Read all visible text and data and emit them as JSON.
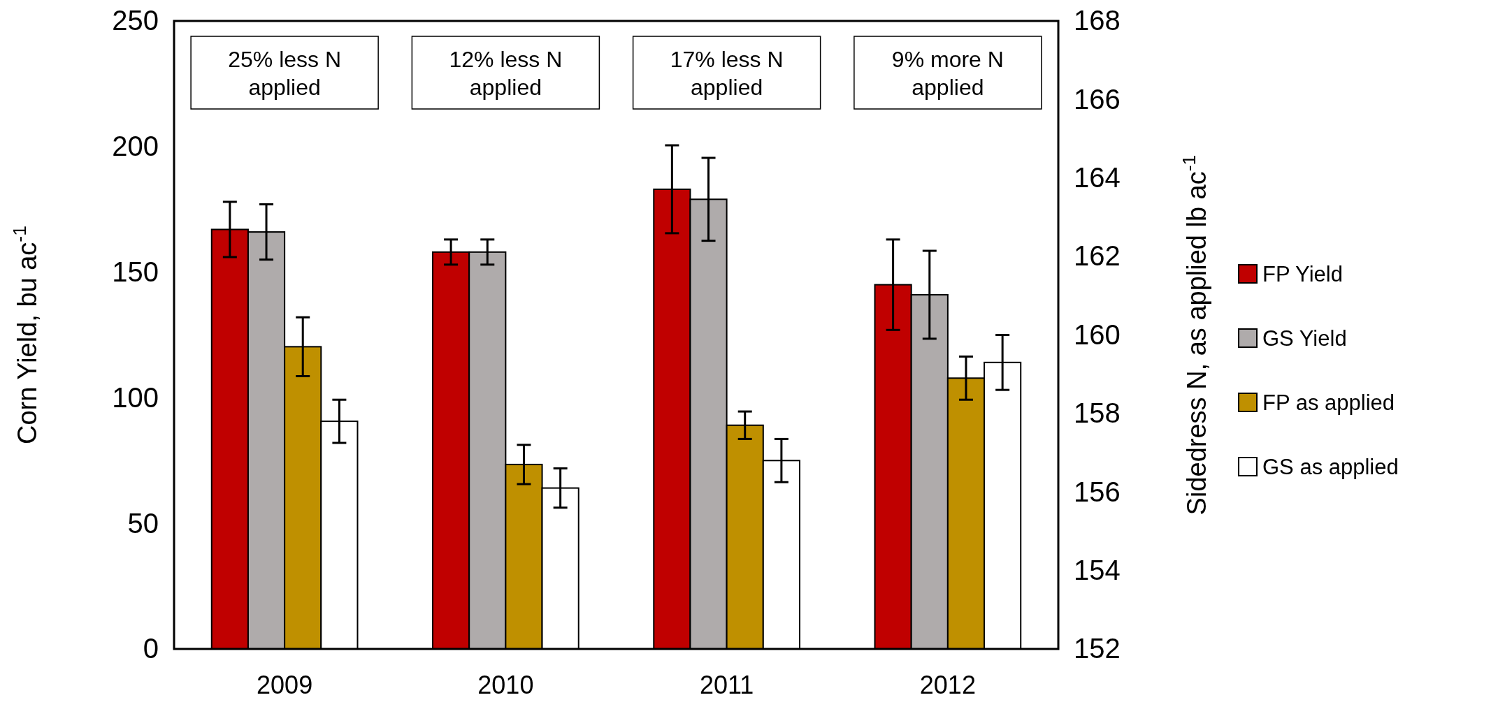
{
  "chart_data": {
    "type": "bar",
    "categories": [
      "2009",
      "2010",
      "2011",
      "2012"
    ],
    "ylabel": "Corn Yield, bu ac$^{-1}$",
    "y2label": "Sidedress N, as applied lb ac$^{-1}$",
    "ylim": [
      0,
      250
    ],
    "yticks": [
      0,
      50,
      100,
      150,
      200,
      250
    ],
    "y2lim": [
      152,
      168
    ],
    "y2ticks": [
      152,
      154,
      156,
      158,
      160,
      162,
      164,
      166,
      168
    ],
    "series": [
      {
        "name": "FP Yield",
        "color": "#c00000",
        "values": [
          167,
          158,
          183,
          145
        ],
        "errors": [
          11,
          5,
          17.5,
          18
        ]
      },
      {
        "name": "GS Yield",
        "color": "#afabab",
        "values": [
          166,
          158,
          179,
          141
        ],
        "errors": [
          11,
          5,
          16.5,
          17.5
        ]
      },
      {
        "name": "FP as applied",
        "color": "#bf9000",
        "axis": "y2",
        "values": [
          159.7,
          156.7,
          157.7,
          158.9
        ],
        "errors": [
          0.75,
          0.5,
          0.35,
          0.55
        ]
      },
      {
        "name": "GS as applied",
        "color": "#ffffff",
        "axis": "y2",
        "values": [
          157.8,
          156.1,
          156.8,
          159.3
        ],
        "errors": [
          0.55,
          0.5,
          0.55,
          0.7
        ]
      }
    ],
    "annotations": [
      "25% less N applied",
      "12% less N applied",
      "17% less N applied",
      "9% more N applied"
    ],
    "legend": "right",
    "grid": false
  }
}
